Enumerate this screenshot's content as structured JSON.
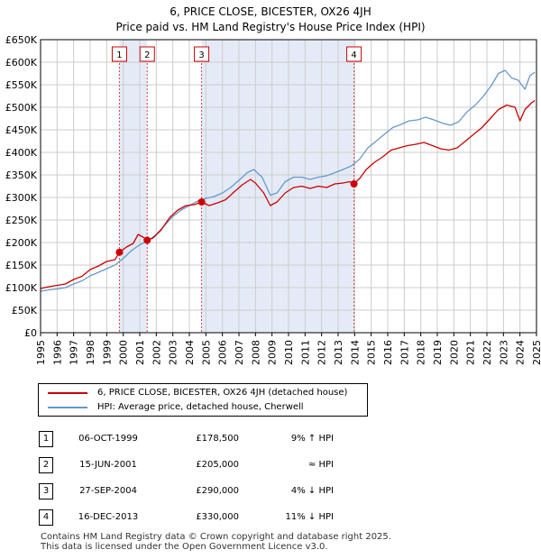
{
  "header": {
    "title": "6, PRICE CLOSE, BICESTER, OX26 4JH",
    "subtitle": "Price paid vs. HM Land Registry's House Price Index (HPI)"
  },
  "colors": {
    "price_line": "#cc0000",
    "hpi_line": "#6699cc",
    "shade": "#dde6f5",
    "grid": "#cccccc",
    "marker_line": "#dd4444"
  },
  "chart_data": {
    "type": "line",
    "x_range": [
      1995,
      2025
    ],
    "ylim": [
      0,
      650000
    ],
    "y_ticks": [
      {
        "value": 0,
        "label": "£0"
      },
      {
        "value": 50000,
        "label": "£50K"
      },
      {
        "value": 100000,
        "label": "£100K"
      },
      {
        "value": 150000,
        "label": "£150K"
      },
      {
        "value": 200000,
        "label": "£200K"
      },
      {
        "value": 250000,
        "label": "£250K"
      },
      {
        "value": 300000,
        "label": "£300K"
      },
      {
        "value": 350000,
        "label": "£350K"
      },
      {
        "value": 400000,
        "label": "£400K"
      },
      {
        "value": 450000,
        "label": "£450K"
      },
      {
        "value": 500000,
        "label": "£500K"
      },
      {
        "value": 550000,
        "label": "£550K"
      },
      {
        "value": 600000,
        "label": "£600K"
      },
      {
        "value": 650000,
        "label": "£650K"
      }
    ],
    "x_ticks": [
      "1995",
      "1996",
      "1997",
      "1998",
      "1999",
      "2000",
      "2001",
      "2002",
      "2003",
      "2004",
      "2005",
      "2006",
      "2007",
      "2008",
      "2009",
      "2010",
      "2011",
      "2012",
      "2013",
      "2014",
      "2015",
      "2016",
      "2017",
      "2018",
      "2019",
      "2020",
      "2021",
      "2022",
      "2023",
      "2024",
      "2025"
    ],
    "grid": true,
    "shaded_periods": [
      [
        1999.77,
        2001.45
      ],
      [
        2004.74,
        2013.96
      ]
    ],
    "sale_markers": [
      {
        "label": "1",
        "x": 1999.77,
        "y": 178500
      },
      {
        "label": "2",
        "x": 2001.45,
        "y": 205000
      },
      {
        "label": "3",
        "x": 2004.74,
        "y": 290000
      },
      {
        "label": "4",
        "x": 2013.96,
        "y": 330000
      }
    ],
    "series": [
      {
        "name": "6, PRICE CLOSE, BICESTER, OX26 4JH (detached house)",
        "color": "#cc0000",
        "points": [
          [
            1995.0,
            98000
          ],
          [
            1995.5,
            102000
          ],
          [
            1996.0,
            105000
          ],
          [
            1996.5,
            108000
          ],
          [
            1997.0,
            118000
          ],
          [
            1997.5,
            125000
          ],
          [
            1998.0,
            140000
          ],
          [
            1998.5,
            148000
          ],
          [
            1999.0,
            158000
          ],
          [
            1999.5,
            162000
          ],
          [
            1999.77,
            178500
          ],
          [
            2000.2,
            190000
          ],
          [
            2000.6,
            198000
          ],
          [
            2000.9,
            218000
          ],
          [
            2001.2,
            212000
          ],
          [
            2001.45,
            205000
          ],
          [
            2001.8,
            210000
          ],
          [
            2002.3,
            228000
          ],
          [
            2002.8,
            255000
          ],
          [
            2003.3,
            272000
          ],
          [
            2003.8,
            282000
          ],
          [
            2004.3,
            284000
          ],
          [
            2004.74,
            290000
          ],
          [
            2005.2,
            282000
          ],
          [
            2005.7,
            288000
          ],
          [
            2006.2,
            295000
          ],
          [
            2006.7,
            312000
          ],
          [
            2007.2,
            328000
          ],
          [
            2007.7,
            340000
          ],
          [
            2008.0,
            332000
          ],
          [
            2008.5,
            310000
          ],
          [
            2008.9,
            282000
          ],
          [
            2009.3,
            290000
          ],
          [
            2009.8,
            310000
          ],
          [
            2010.3,
            322000
          ],
          [
            2010.8,
            325000
          ],
          [
            2011.3,
            320000
          ],
          [
            2011.8,
            325000
          ],
          [
            2012.3,
            322000
          ],
          [
            2012.8,
            330000
          ],
          [
            2013.3,
            332000
          ],
          [
            2013.7,
            335000
          ],
          [
            2013.96,
            330000
          ],
          [
            2014.3,
            342000
          ],
          [
            2014.7,
            362000
          ],
          [
            2015.2,
            378000
          ],
          [
            2015.7,
            390000
          ],
          [
            2016.2,
            405000
          ],
          [
            2016.7,
            410000
          ],
          [
            2017.2,
            415000
          ],
          [
            2017.7,
            418000
          ],
          [
            2018.2,
            422000
          ],
          [
            2018.7,
            415000
          ],
          [
            2019.2,
            408000
          ],
          [
            2019.7,
            405000
          ],
          [
            2020.2,
            410000
          ],
          [
            2020.7,
            425000
          ],
          [
            2021.2,
            440000
          ],
          [
            2021.7,
            455000
          ],
          [
            2022.2,
            475000
          ],
          [
            2022.7,
            495000
          ],
          [
            2023.2,
            505000
          ],
          [
            2023.7,
            500000
          ],
          [
            2024.0,
            470000
          ],
          [
            2024.3,
            495000
          ],
          [
            2024.7,
            510000
          ],
          [
            2024.9,
            515000
          ]
        ]
      },
      {
        "name": "HPI: Average price, detached house, Cherwell",
        "color": "#6699cc",
        "points": [
          [
            1995.0,
            92000
          ],
          [
            1995.5,
            95000
          ],
          [
            1996.0,
            97000
          ],
          [
            1996.5,
            100000
          ],
          [
            1997.0,
            108000
          ],
          [
            1997.5,
            115000
          ],
          [
            1998.0,
            126000
          ],
          [
            1998.5,
            134000
          ],
          [
            1999.0,
            142000
          ],
          [
            1999.5,
            150000
          ],
          [
            2000.0,
            165000
          ],
          [
            2000.5,
            182000
          ],
          [
            2001.0,
            195000
          ],
          [
            2001.5,
            204000
          ],
          [
            2002.0,
            218000
          ],
          [
            2002.5,
            238000
          ],
          [
            2003.0,
            258000
          ],
          [
            2003.5,
            272000
          ],
          [
            2004.0,
            282000
          ],
          [
            2004.5,
            292000
          ],
          [
            2005.0,
            298000
          ],
          [
            2005.5,
            302000
          ],
          [
            2006.0,
            310000
          ],
          [
            2006.5,
            322000
          ],
          [
            2007.0,
            338000
          ],
          [
            2007.5,
            355000
          ],
          [
            2007.9,
            362000
          ],
          [
            2008.4,
            345000
          ],
          [
            2008.9,
            305000
          ],
          [
            2009.3,
            310000
          ],
          [
            2009.8,
            335000
          ],
          [
            2010.3,
            345000
          ],
          [
            2010.8,
            345000
          ],
          [
            2011.3,
            340000
          ],
          [
            2011.8,
            345000
          ],
          [
            2012.3,
            348000
          ],
          [
            2012.8,
            355000
          ],
          [
            2013.3,
            362000
          ],
          [
            2013.8,
            370000
          ],
          [
            2014.3,
            385000
          ],
          [
            2014.8,
            410000
          ],
          [
            2015.3,
            425000
          ],
          [
            2015.8,
            440000
          ],
          [
            2016.3,
            455000
          ],
          [
            2016.8,
            462000
          ],
          [
            2017.3,
            470000
          ],
          [
            2017.8,
            472000
          ],
          [
            2018.3,
            478000
          ],
          [
            2018.8,
            472000
          ],
          [
            2019.3,
            465000
          ],
          [
            2019.8,
            460000
          ],
          [
            2020.3,
            468000
          ],
          [
            2020.8,
            490000
          ],
          [
            2021.3,
            505000
          ],
          [
            2021.8,
            525000
          ],
          [
            2022.3,
            550000
          ],
          [
            2022.7,
            575000
          ],
          [
            2023.1,
            582000
          ],
          [
            2023.5,
            565000
          ],
          [
            2023.9,
            560000
          ],
          [
            2024.3,
            540000
          ],
          [
            2024.6,
            570000
          ],
          [
            2024.9,
            578000
          ]
        ]
      }
    ]
  },
  "legend": {
    "items": [
      {
        "label": "6, PRICE CLOSE, BICESTER, OX26 4JH (detached house)",
        "color": "#cc0000"
      },
      {
        "label": "HPI: Average price, detached house, Cherwell",
        "color": "#6699cc"
      }
    ]
  },
  "sales": [
    {
      "num": "1",
      "date": "06-OCT-1999",
      "price": "£178,500",
      "hpi": "9% ↑ HPI"
    },
    {
      "num": "2",
      "date": "15-JUN-2001",
      "price": "£205,000",
      "hpi": "≈ HPI"
    },
    {
      "num": "3",
      "date": "27-SEP-2004",
      "price": "£290,000",
      "hpi": "4% ↓ HPI"
    },
    {
      "num": "4",
      "date": "16-DEC-2013",
      "price": "£330,000",
      "hpi": "11% ↓ HPI"
    }
  ],
  "footer": {
    "line1": "Contains HM Land Registry data © Crown copyright and database right 2025.",
    "line2": "This data is licensed under the Open Government Licence v3.0."
  }
}
